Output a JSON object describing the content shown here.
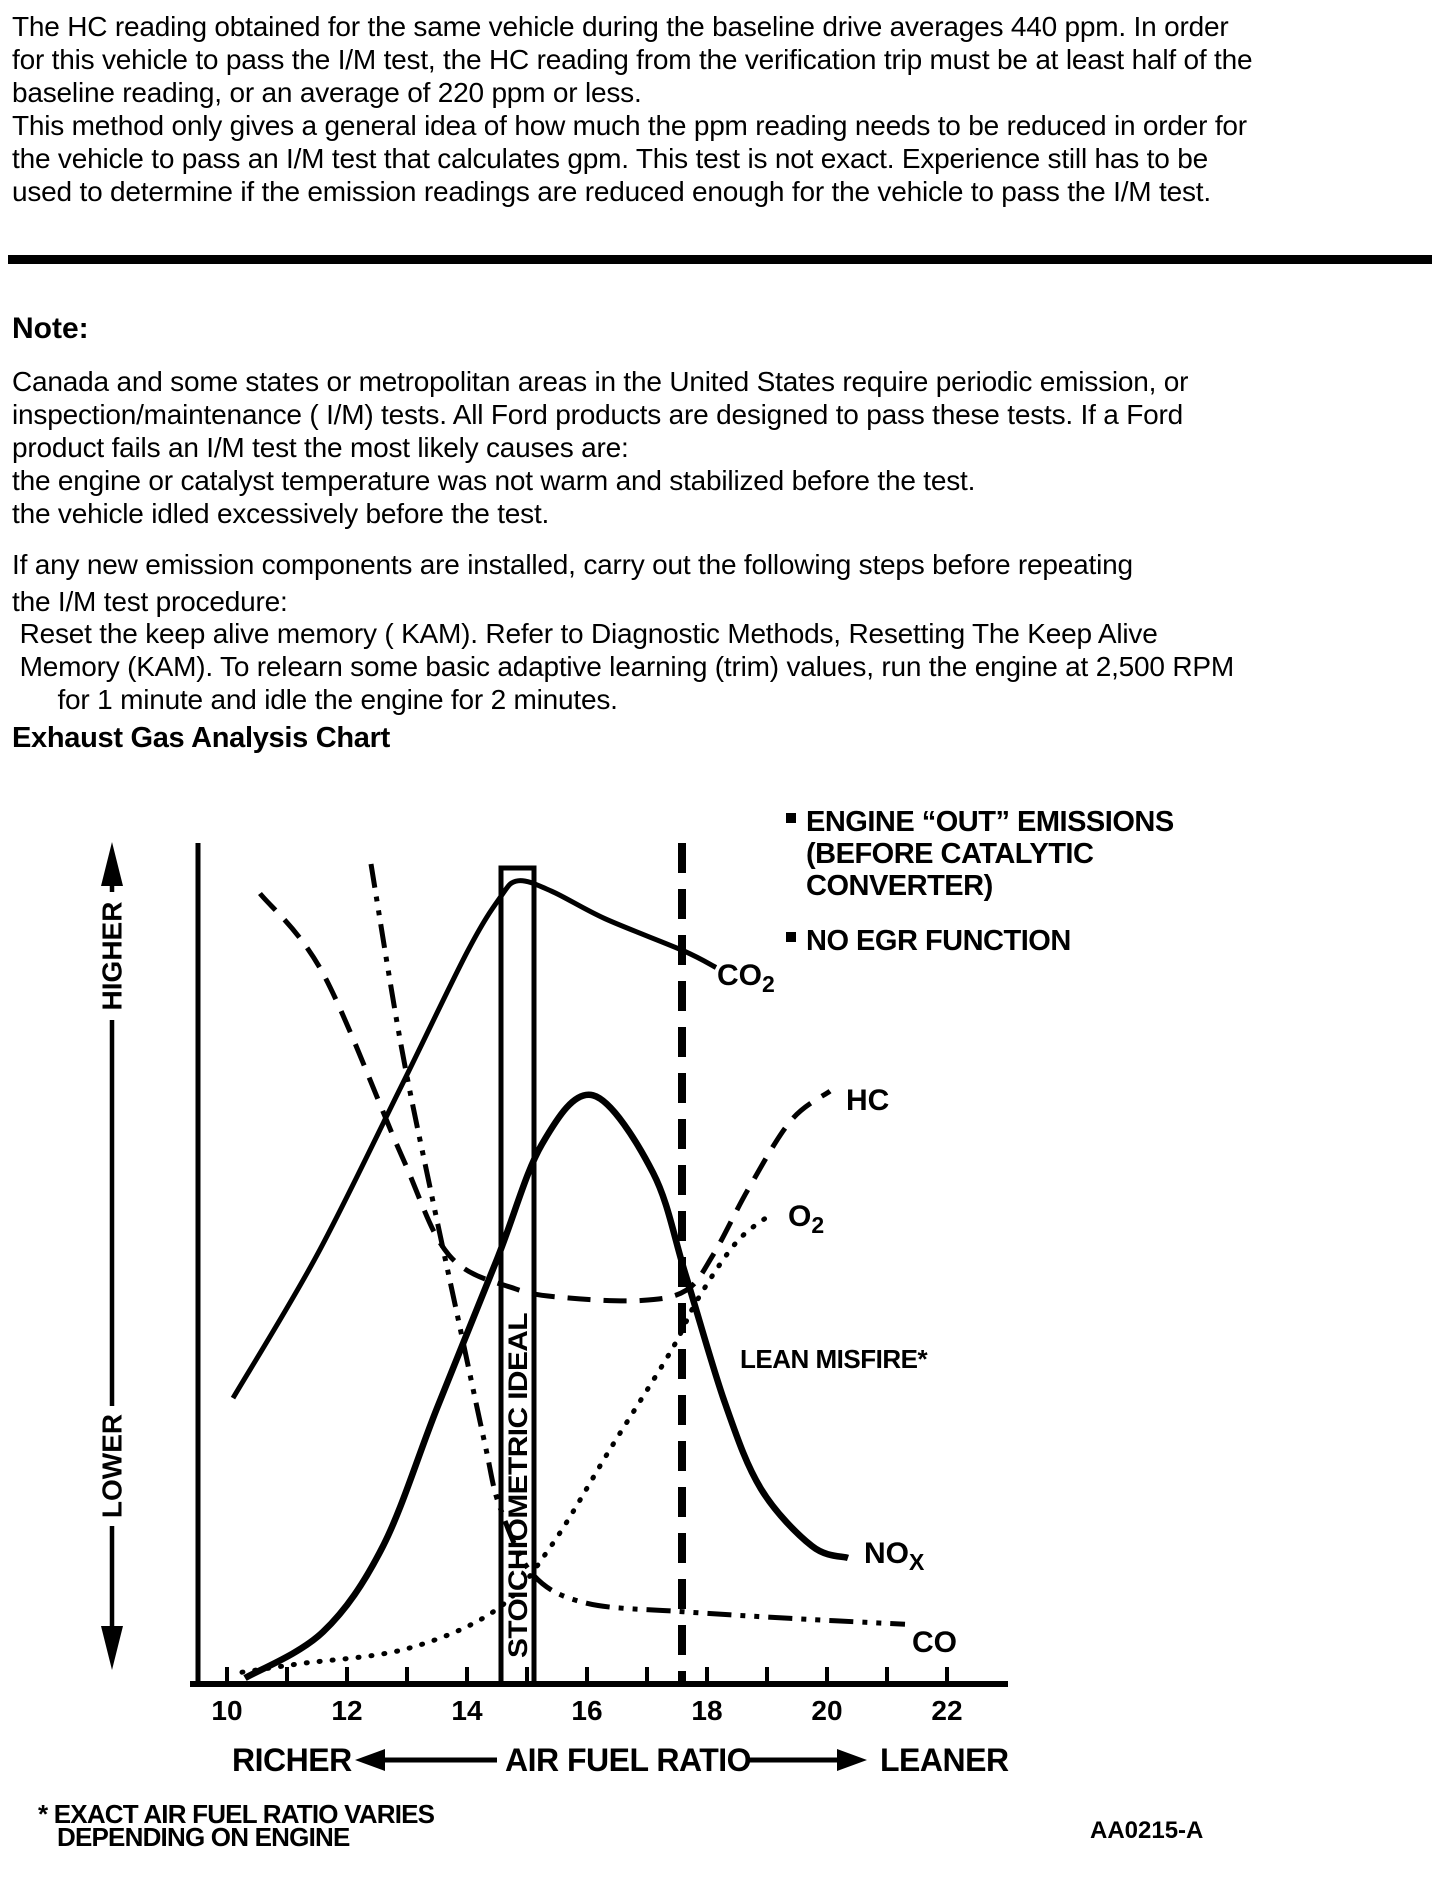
{
  "document": {
    "intro_lines": [
      "The HC reading obtained for the same vehicle during the baseline drive averages 440 ppm. In order",
      "for this vehicle to pass the I/M test, the HC reading from the verification trip must be at least half of the",
      "baseline reading, or an average of 220 ppm or less.",
      "This method only gives a general idea of how much the ppm reading needs to be reduced in order for",
      "the vehicle to pass an I/M test that calculates gpm. This test is not exact. Experience still has to be",
      "used to determine if the emission readings are reduced enough for the vehicle to pass the I/M test."
    ],
    "note_heading": "Note:",
    "note_lines": [
      "Canada and some states or metropolitan areas in the United States require periodic emission, or",
      "inspection/maintenance ( I/M) tests. All Ford products are designed to pass these tests. If a Ford",
      "product fails an I/M test the most likely causes are:",
      "the engine or catalyst temperature was not warm and stabilized before the test.",
      "the vehicle idled excessively before the test."
    ],
    "steps_lines": [
      "If any new emission components are installed, carry out the following steps before repeating",
      "the I/M test procedure:"
    ],
    "kam_lines": [
      " Reset the keep alive memory ( KAM). Refer to Diagnostic Methods, Resetting The Keep Alive",
      " Memory (KAM). To relearn some basic adaptive learning (trim) values, run the engine at 2,500 RPM",
      "      for 1 minute and idle the engine for 2 minutes."
    ],
    "chart_heading": "Exhaust Gas Analysis Chart"
  },
  "chart": {
    "legend": {
      "item1_line1": "ENGINE “OUT” EMISSIONS",
      "item1_line2": "(BEFORE CATALYTIC",
      "item1_line3": "CONVERTER)",
      "item2": "NO EGR FUNCTION"
    },
    "labels": {
      "co2_main": "CO",
      "co2_sub": "2",
      "hc": "HC",
      "o2_main": "O",
      "o2_sub": "2",
      "nox_main": "NO",
      "nox_sub": "X",
      "co": "CO",
      "lean_misfire": "LEAN MISFIRE*",
      "stoichiometric": "STOICHIOMETRIC IDEAL",
      "higher": "HIGHER",
      "lower": "LOWER",
      "richer": "RICHER",
      "air_fuel_ratio": "AIR FUEL RATIO",
      "leaner": "LEANER"
    },
    "footnote_line1": "* EXACT AIR FUEL RATIO VARIES",
    "footnote_line2": "DEPENDING ON ENGINE",
    "figure_code": "AA0215-A"
  },
  "chart_data": {
    "type": "line",
    "title": "Exhaust Gas Analysis Chart",
    "xlabel": "AIR FUEL RATIO",
    "x_direction": {
      "left": "RICHER",
      "right": "LEANER"
    },
    "ylabel": {
      "top": "HIGHER",
      "bottom": "LOWER"
    },
    "x_range": [
      10,
      23
    ],
    "x_major_ticks": [
      10,
      12,
      14,
      16,
      18,
      20,
      22
    ],
    "x_minor_ticks": [
      11,
      13,
      15,
      17,
      19,
      21
    ],
    "y_scale": "relative concentration 0-100 (unlabeled axis, LOWER to HIGHER)",
    "stoichiometric_ideal_band_afr": [
      14.6,
      15.15
    ],
    "lean_misfire_dashed_line_afr": 17.6,
    "annotations": [
      "STOICHIOMETRIC IDEAL",
      "LEAN MISFIRE*"
    ],
    "conditions": [
      "ENGINE “OUT” EMISSIONS (BEFORE CATALYTIC CONVERTER)",
      "NO EGR FUNCTION"
    ],
    "footnote": "* EXACT AIR FUEL RATIO VARIES DEPENDING ON ENGINE",
    "figure_code": "AA0215-A",
    "grid": false,
    "series": [
      {
        "name": "CO2",
        "line_style": "solid",
        "stroke_width": 5,
        "points": [
          [
            10.1,
            34
          ],
          [
            11.5,
            51
          ],
          [
            12.9,
            71
          ],
          [
            14.0,
            87
          ],
          [
            14.55,
            93.5
          ],
          [
            14.85,
            95.5
          ],
          [
            15.4,
            94.3
          ],
          [
            16.3,
            91
          ],
          [
            17.6,
            87.2
          ],
          [
            18.15,
            85.2
          ]
        ]
      },
      {
        "name": "HC",
        "line_style": "dashed",
        "stroke_width": 5,
        "points": [
          [
            10.55,
            94
          ],
          [
            11.6,
            84.5
          ],
          [
            12.9,
            63
          ],
          [
            13.7,
            51
          ],
          [
            14.8,
            47
          ],
          [
            15.7,
            45.9
          ],
          [
            16.9,
            45.6
          ],
          [
            17.65,
            46.8
          ],
          [
            18.1,
            51
          ],
          [
            18.7,
            59
          ],
          [
            19.4,
            67
          ],
          [
            20.05,
            70.5
          ]
        ]
      },
      {
        "name": "CO",
        "line_style": "dashdotdot",
        "stroke_width": 5,
        "points": [
          [
            12.4,
            97.5
          ],
          [
            12.9,
            76
          ],
          [
            13.4,
            58.5
          ],
          [
            13.85,
            43.5
          ],
          [
            14.3,
            28.5
          ],
          [
            14.55,
            21
          ],
          [
            15.1,
            13
          ],
          [
            16.0,
            9.6
          ],
          [
            17.6,
            8.6
          ],
          [
            19.4,
            7.8
          ],
          [
            21.3,
            7.1
          ]
        ]
      },
      {
        "name": "O2",
        "line_style": "dotted",
        "stroke_width": 5,
        "points": [
          [
            10.25,
            1.4
          ],
          [
            11.2,
            2.4
          ],
          [
            13.0,
            4.2
          ],
          [
            14.5,
            8.9
          ],
          [
            15.4,
            16.4
          ],
          [
            16.4,
            28.1
          ],
          [
            17.4,
            39.6
          ],
          [
            17.85,
            45.8
          ],
          [
            18.5,
            52.6
          ],
          [
            19.1,
            56
          ]
        ]
      },
      {
        "name": "NOx",
        "line_style": "solid",
        "stroke_width": 6.5,
        "points": [
          [
            10.3,
            0.7
          ],
          [
            11.6,
            6.2
          ],
          [
            12.6,
            16.4
          ],
          [
            13.5,
            32.8
          ],
          [
            14.5,
            50.5
          ],
          [
            15.25,
            64.2
          ],
          [
            16.1,
            70
          ],
          [
            17.1,
            60.8
          ],
          [
            17.65,
            48.5
          ],
          [
            18.3,
            33.4
          ],
          [
            18.9,
            23.2
          ],
          [
            19.75,
            16.4
          ],
          [
            20.35,
            15
          ]
        ]
      }
    ]
  }
}
